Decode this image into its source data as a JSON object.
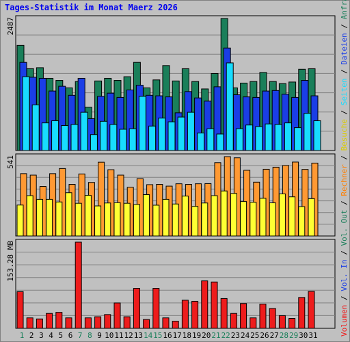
{
  "title": "Tages-Statistik im Monat Maerz 2026",
  "chart_data": [
    {
      "type": "bar",
      "panel": "Seiten / Dateien / Anfragen",
      "days": [
        "1",
        "2",
        "3",
        "4",
        "5",
        "6",
        "7",
        "8",
        "9",
        "10",
        "11",
        "12",
        "13",
        "14",
        "15",
        "16",
        "17",
        "18",
        "19",
        "20",
        "21",
        "22",
        "23",
        "24",
        "25",
        "26",
        "27",
        "28",
        "29",
        "30",
        "31"
      ],
      "weekend_days": [
        "1",
        "7",
        "8",
        "14",
        "15",
        "21",
        "22",
        "28",
        "29"
      ],
      "y_max_label": "2487",
      "y_max": 2487,
      "series": [
        {
          "name": "Anfragen",
          "color": "#1a7f5a",
          "values": [
            1980,
            1540,
            1560,
            1360,
            1320,
            1180,
            1300,
            815,
            1310,
            1360,
            1320,
            1390,
            1660,
            1180,
            1330,
            1600,
            1310,
            1540,
            1300,
            1160,
            1450,
            2487,
            1180,
            1270,
            1300,
            1470,
            1300,
            1260,
            1290,
            1530,
            1540
          ]
        },
        {
          "name": "Dateien",
          "color": "#1a3ee6",
          "values": [
            1660,
            1380,
            1360,
            1120,
            1210,
            1040,
            1360,
            600,
            1020,
            1080,
            1000,
            1140,
            1230,
            1040,
            1030,
            1010,
            710,
            1110,
            990,
            930,
            1200,
            1930,
            1050,
            1010,
            1000,
            1120,
            1130,
            1060,
            1000,
            1320,
            1030
          ]
        },
        {
          "name": "Seiten",
          "color": "#18dcff",
          "values": [
            1390,
            860,
            520,
            560,
            470,
            490,
            720,
            300,
            550,
            490,
            400,
            410,
            1020,
            460,
            610,
            540,
            630,
            720,
            330,
            410,
            310,
            1650,
            410,
            480,
            450,
            500,
            490,
            520,
            430,
            700,
            560
          ]
        }
      ]
    },
    {
      "type": "bar",
      "panel": "Besuche / Rechner",
      "days": [
        "1",
        "2",
        "3",
        "4",
        "5",
        "6",
        "7",
        "8",
        "9",
        "10",
        "11",
        "12",
        "13",
        "14",
        "15",
        "16",
        "17",
        "18",
        "19",
        "20",
        "21",
        "22",
        "23",
        "24",
        "25",
        "26",
        "27",
        "28",
        "29",
        "30",
        "31"
      ],
      "y_max_label": "541",
      "y_max": 541,
      "series": [
        {
          "name": "Rechner",
          "color": "#ff9933",
          "values": [
            425,
            415,
            338,
            425,
            460,
            352,
            423,
            365,
            503,
            452,
            415,
            332,
            391,
            350,
            352,
            340,
            356,
            352,
            356,
            357,
            500,
            541,
            533,
            448,
            367,
            455,
            469,
            481,
            504,
            454,
            497
          ]
        },
        {
          "name": "Besuche",
          "color": "#ffff33",
          "values": [
            211,
            275,
            250,
            250,
            232,
            295,
            223,
            277,
            205,
            225,
            227,
            223,
            215,
            282,
            210,
            250,
            218,
            272,
            202,
            225,
            275,
            307,
            290,
            235,
            230,
            257,
            226,
            287,
            267,
            200,
            255
          ]
        }
      ]
    },
    {
      "type": "bar",
      "panel": "Volumen",
      "days": [
        "1",
        "2",
        "3",
        "4",
        "5",
        "6",
        "7",
        "8",
        "9",
        "10",
        "11",
        "12",
        "13",
        "14",
        "15",
        "16",
        "17",
        "18",
        "19",
        "20",
        "21",
        "22",
        "23",
        "24",
        "25",
        "26",
        "27",
        "28",
        "29",
        "30",
        "31"
      ],
      "y_max_label": "153.28 MB",
      "y_max": 153.28,
      "unit": "MB",
      "series": [
        {
          "name": "Volumen",
          "color": "#ee1c1c",
          "values": [
            65.2,
            18.6,
            16.7,
            26.5,
            28.4,
            18.6,
            153.28,
            18.6,
            20.6,
            24.5,
            45.1,
            20.6,
            71.1,
            15.7,
            71.1,
            18.6,
            12.7,
            50.0,
            48.1,
            84.4,
            82.4,
            53.0,
            26.5,
            44.1,
            18.6,
            43.1,
            35.3,
            22.6,
            17.6,
            54.9,
            65.7
          ]
        }
      ]
    }
  ],
  "right_legend": [
    {
      "parts": [
        {
          "text": "Volumen",
          "color": "#ee1c1c"
        },
        {
          "text": " / ",
          "color": "#000000"
        },
        {
          "text": "Vol. In",
          "color": "#1a3ee6"
        },
        {
          "text": " / ",
          "color": "#000000"
        },
        {
          "text": "Vol. Out",
          "color": "#1a7f5a"
        },
        {
          "text": " / ",
          "color": "#000000"
        },
        {
          "text": "Rechner",
          "color": "#ff7f00"
        },
        {
          "text": " / ",
          "color": "#000000"
        },
        {
          "text": "Besuche",
          "color": "#dccc00"
        },
        {
          "text": " / ",
          "color": "#000000"
        },
        {
          "text": "Seiten",
          "color": "#18dcff"
        },
        {
          "text": " / ",
          "color": "#000000"
        },
        {
          "text": "Dateien",
          "color": "#1a3ee6"
        },
        {
          "text": " / ",
          "color": "#000000"
        },
        {
          "text": "Anfragen",
          "color": "#1a7f5a"
        }
      ]
    }
  ],
  "colors": {
    "background": "#c0c0c0",
    "plot_area": "#c0c0c0",
    "gridline": "#808080",
    "weekday_label": "#000000",
    "weekend_label": "#1a7f5a",
    "title": "#0000ee"
  }
}
